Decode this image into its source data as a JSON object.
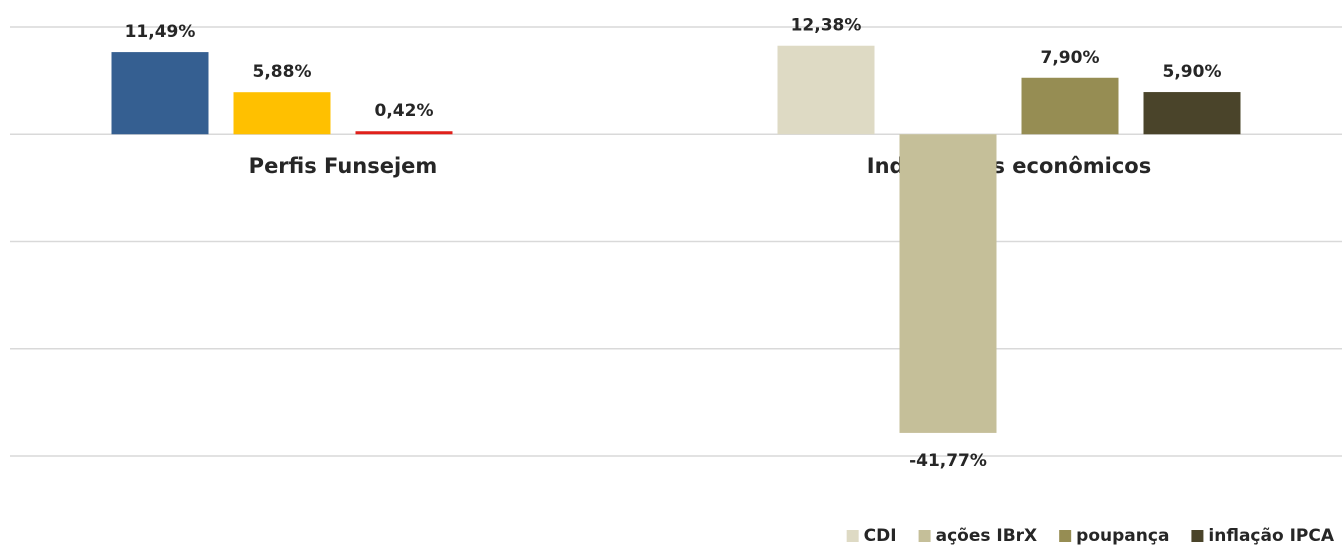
{
  "chart_data": {
    "type": "bar",
    "categories": [
      "Perfis Funsejem",
      "Indicadores econômicos"
    ],
    "groups": [
      {
        "bars": [
          {
            "color": "#355f91",
            "value": 11.49,
            "value_label": "11,49%"
          },
          {
            "color": "#ffc000",
            "value": 5.88,
            "value_label": "5,88%"
          },
          {
            "color": "#e0201b",
            "value": 0.42,
            "value_label": "0,42%"
          }
        ]
      },
      {
        "bars": [
          {
            "name": "CDI",
            "color": "#dedac4",
            "value": 12.38,
            "value_label": "12,38%"
          },
          {
            "name": "ações IBrX",
            "color": "#c5bf99",
            "value": -41.77,
            "value_label": "-41,77%"
          },
          {
            "name": "poupança",
            "color": "#968d53",
            "value": 7.9,
            "value_label": "7,90%"
          },
          {
            "name": "inflação IPCA",
            "color": "#4a442a",
            "value": 5.9,
            "value_label": "5,90%"
          }
        ]
      }
    ],
    "ylim": [
      -45,
      15
    ],
    "yticks": [
      15,
      0,
      -15,
      -30,
      -45
    ],
    "grid": true,
    "legend": "bottom-right"
  }
}
